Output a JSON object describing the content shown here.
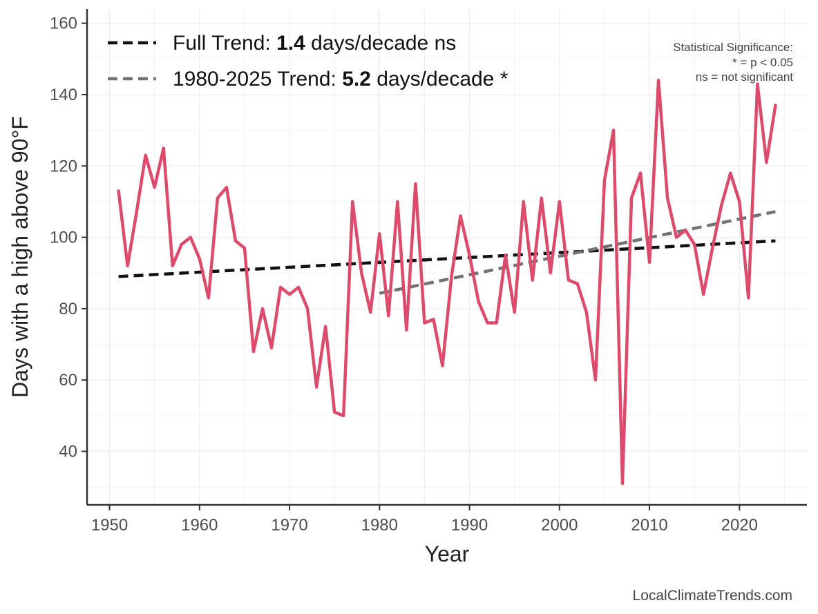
{
  "chart_data": {
    "type": "line",
    "xlabel": "Year",
    "ylabel": "Days with a high above 90°F",
    "xlim": [
      1947.5,
      2027.5
    ],
    "ylim": [
      25,
      164
    ],
    "x_ticks": [
      1950,
      1960,
      1970,
      1980,
      1990,
      2000,
      2010,
      2020
    ],
    "y_ticks": [
      40,
      60,
      80,
      100,
      120,
      140,
      160
    ],
    "grid": true,
    "series": [
      {
        "name": "Days above 90°F",
        "color": "#dc4a6c",
        "x": [
          1951,
          1952,
          1953,
          1954,
          1955,
          1956,
          1957,
          1958,
          1959,
          1960,
          1961,
          1962,
          1963,
          1964,
          1965,
          1966,
          1967,
          1968,
          1969,
          1970,
          1971,
          1972,
          1973,
          1974,
          1975,
          1976,
          1977,
          1978,
          1979,
          1980,
          1981,
          1982,
          1983,
          1984,
          1985,
          1986,
          1987,
          1988,
          1989,
          1990,
          1991,
          1992,
          1993,
          1994,
          1995,
          1996,
          1997,
          1998,
          1999,
          2000,
          2001,
          2002,
          2003,
          2004,
          2005,
          2006,
          2007,
          2008,
          2009,
          2010,
          2011,
          2012,
          2013,
          2014,
          2015,
          2016,
          2017,
          2018,
          2019,
          2020,
          2021,
          2022,
          2023,
          2024
        ],
        "values": [
          113,
          92,
          107,
          123,
          114,
          125,
          92,
          98,
          100,
          94,
          83,
          111,
          114,
          99,
          97,
          68,
          80,
          69,
          86,
          84,
          86,
          80,
          58,
          75,
          51,
          50,
          110,
          90,
          79,
          101,
          78,
          110,
          74,
          115,
          76,
          77,
          64,
          89,
          106,
          95,
          82,
          76,
          76,
          95,
          79,
          110,
          88,
          111,
          90,
          110,
          88,
          87,
          79,
          60,
          116,
          130,
          31,
          111,
          118,
          93,
          144,
          111,
          100,
          102,
          98,
          84,
          97,
          109,
          118,
          110,
          83,
          143,
          121,
          137
        ]
      }
    ],
    "trends": [
      {
        "name": "Full Trend",
        "color": "#111111",
        "x": [
          1951,
          2024
        ],
        "values": [
          89,
          99
        ],
        "label_prefix": "Full Trend: ",
        "label_value": "1.4",
        "label_suffix": " days/decade ns"
      },
      {
        "name": "1980-2025 Trend",
        "color": "#737373",
        "x": [
          1980,
          2024
        ],
        "values": [
          84.3,
          107.2
        ],
        "label_prefix": "1980-2025 Trend: ",
        "label_value": "5.2",
        "label_suffix": " days/decade *"
      }
    ],
    "significance_note": {
      "title": "Statistical Significance:",
      "line1": "* = p < 0.05",
      "line2": "ns = not significant"
    },
    "credit": "LocalClimateTrends.com"
  }
}
